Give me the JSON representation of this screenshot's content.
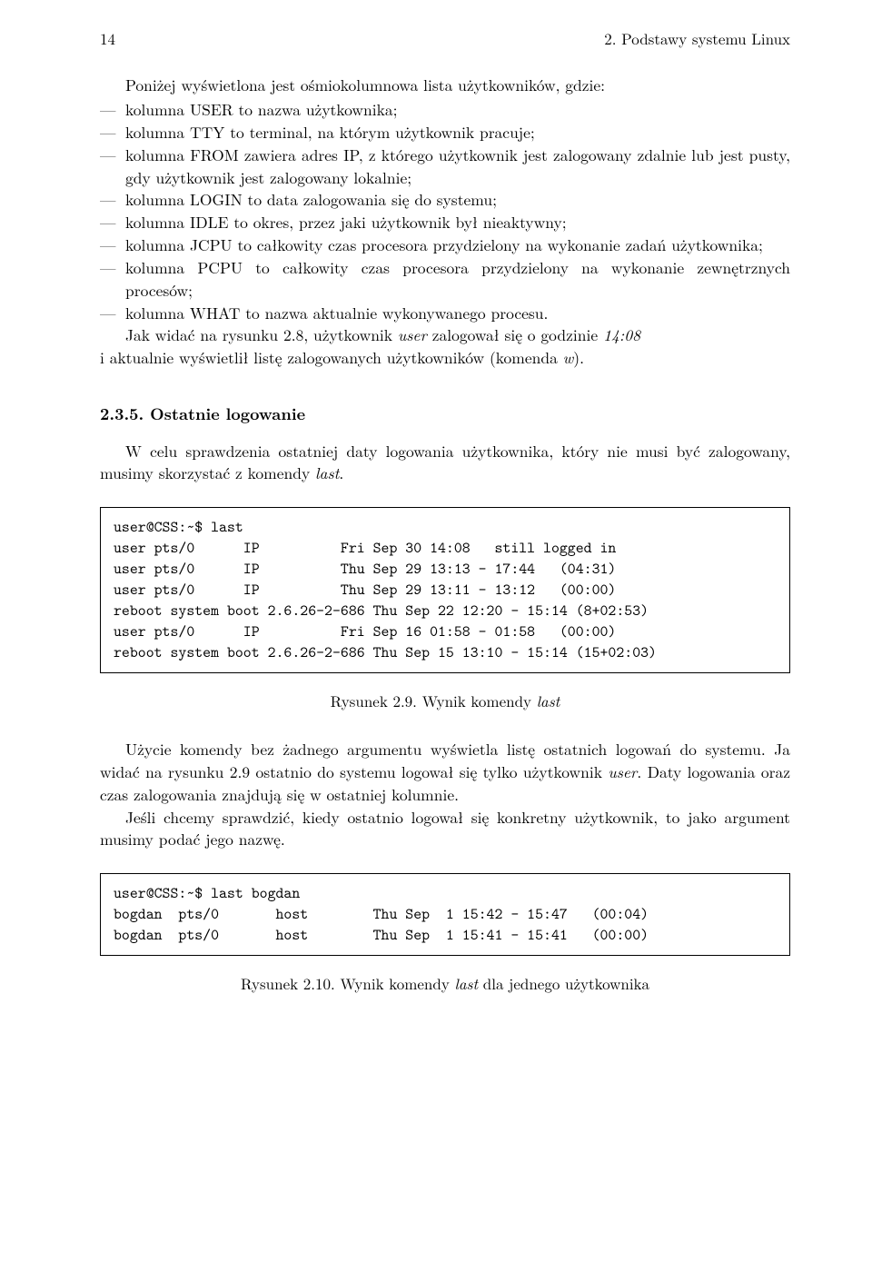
{
  "header": {
    "page_number": "14",
    "chapter_title": "2. Podstawy systemu Linux"
  },
  "intro": "Poniżej wyświetlona jest ośmiokolumnowa lista użytkowników, gdzie:",
  "items": [
    "kolumna USER to nazwa użytkownika;",
    "kolumna TTY to terminal, na którym użytkownik pracuje;",
    "kolumna FROM zawiera adres IP, z którego użytkownik jest zalogowany zdalnie lub jest pusty, gdy użytkownik jest zalogowany lokalnie;",
    "kolumna LOGIN to data zalogowania się do systemu;",
    "kolumna IDLE to okres, przez jaki użytkownik był nieaktywny;",
    "kolumna JCPU to całkowity czas procesora przydzielony na wykonanie zadań użytkownika;",
    "kolumna PCPU to całkowity czas procesora przydzielony na wykonanie zewnętrznych procesów;",
    "kolumna WHAT to nazwa aktualnie wykonywanego procesu."
  ],
  "after_list_1a": "Jak widać na rysunku 2.8, użytkownik ",
  "after_list_1_user": "user",
  "after_list_1b": " zalogował się o godzinie ",
  "after_list_1_time": "14:08",
  "after_list_2a": "i aktualnie wyświetlił listę zalogowanych użytkowników (komenda ",
  "after_list_2_cmd": "w",
  "after_list_2b": ").",
  "section": "2.3.5. Ostatnie logowanie",
  "sec_para_a": "W celu sprawdzenia ostatniej daty logowania użytkownika, który nie musi być zalogowany, musimy skorzystać z komendy ",
  "sec_para_cmd": "last",
  "sec_para_b": ".",
  "code1": "user@CSS:~$ last\nuser pts/0      IP          Fri Sep 30 14:08   still logged in\nuser pts/0      IP          Thu Sep 29 13:13 - 17:44   (04:31)\nuser pts/0      IP          Thu Sep 29 13:11 - 13:12   (00:00)\nreboot system boot 2.6.26-2-686 Thu Sep 22 12:20 - 15:14 (8+02:53)\nuser pts/0      IP          Fri Sep 16 01:58 - 01:58   (00:00)\nreboot system boot 2.6.26-2-686 Thu Sep 15 13:10 - 15:14 (15+02:03)",
  "fig1_a": "Rysunek 2.9. Wynik komendy ",
  "fig1_cmd": "last",
  "para2_a": "Użycie komendy bez żadnego argumentu wyświetla listę ostatnich logowań do systemu. Ja widać na rysunku 2.9 ostatnio do systemu logował się tylko użytkownik ",
  "para2_user": "user",
  "para2_b": ". Daty logowania oraz czas zalogowania znajdują się w ostatniej kolumnie.",
  "para3": "Jeśli chcemy sprawdzić, kiedy ostatnio logował się konkretny użytkownik, to jako argument musimy podać jego nazwę.",
  "code2": "user@CSS:~$ last bogdan\nbogdan  pts/0       host        Thu Sep  1 15:42 - 15:47   (00:04)\nbogdan  pts/0       host        Thu Sep  1 15:41 - 15:41   (00:00)",
  "fig2_a": "Rysunek 2.10. Wynik komendy ",
  "fig2_cmd": "last",
  "fig2_b": " dla jednego użytkownika"
}
